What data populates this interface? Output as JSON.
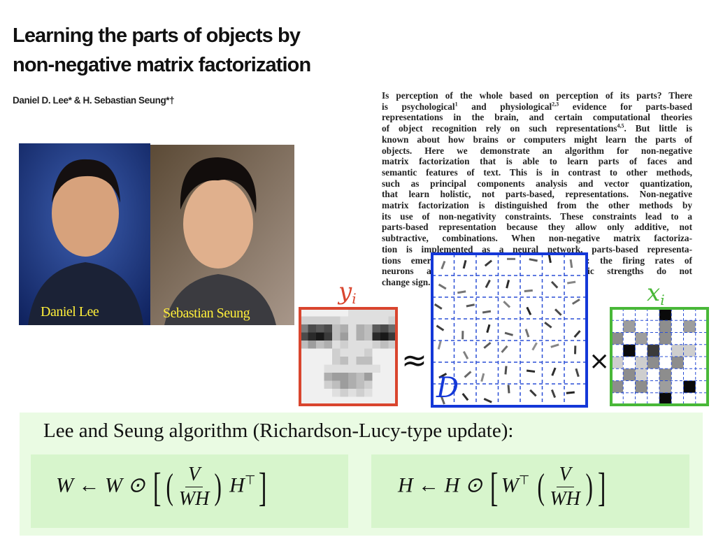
{
  "title": {
    "lines": [
      "Learning the parts of objects by",
      "non-negative matrix factorization"
    ]
  },
  "authors": "Daniel D. Lee* & H. Sebastian Seung*†",
  "photos": [
    {
      "label": "Daniel Lee"
    },
    {
      "label": "Sebastian Seung"
    }
  ],
  "abstract": {
    "lines": [
      "Is perception of the whole based on perception of its parts? There",
      [
        "is psychological",
        "1",
        " and physiological",
        "2,3",
        " evidence for parts-based"
      ],
      "representations in the brain, and certain computational theories",
      [
        "of object recognition rely on such representations",
        "4,5",
        ". But little is"
      ],
      "known about how brains or computers might learn the parts of",
      "objects. Here we demonstrate an algorithm for non-negative",
      "matrix factorization that is able to learn parts of faces and",
      "semantic features of text. This is in contrast to other methods,",
      "such as principal components analysis and vector quantization,",
      "that learn holistic, not parts-based, representations. Non-negative",
      "matrix factorization is distinguished from the other methods by",
      "its use of non-negativity constraints. These constraints lead to a",
      "parts-based representation because they allow only additive, not",
      "subtractive, combinations. When non-negative matrix factoriza-",
      "tion is implemented as a neural network, parts-based representa-",
      "tions emerge by virtue of two properties: the firing rates of",
      "neurons are never negative and synaptic strengths do not",
      "change sign."
    ]
  },
  "diagram": {
    "y": "y",
    "y_sub": "i",
    "approx": "≈",
    "D": "D",
    "times": "×",
    "x": "x",
    "x_sub": "i"
  },
  "algorithm": {
    "heading": "Lee and Seung algorithm (Richardson-Lucy-type update):",
    "formulas": [
      {
        "lhs": "W ← W ⊙",
        "num": "V",
        "den": "WH",
        "factor": "H",
        "sup": "⊤"
      },
      {
        "lhs": "H ← H ⊙",
        "factor": "W",
        "sup": "⊤",
        "num": "V",
        "den": "WH"
      }
    ]
  }
}
